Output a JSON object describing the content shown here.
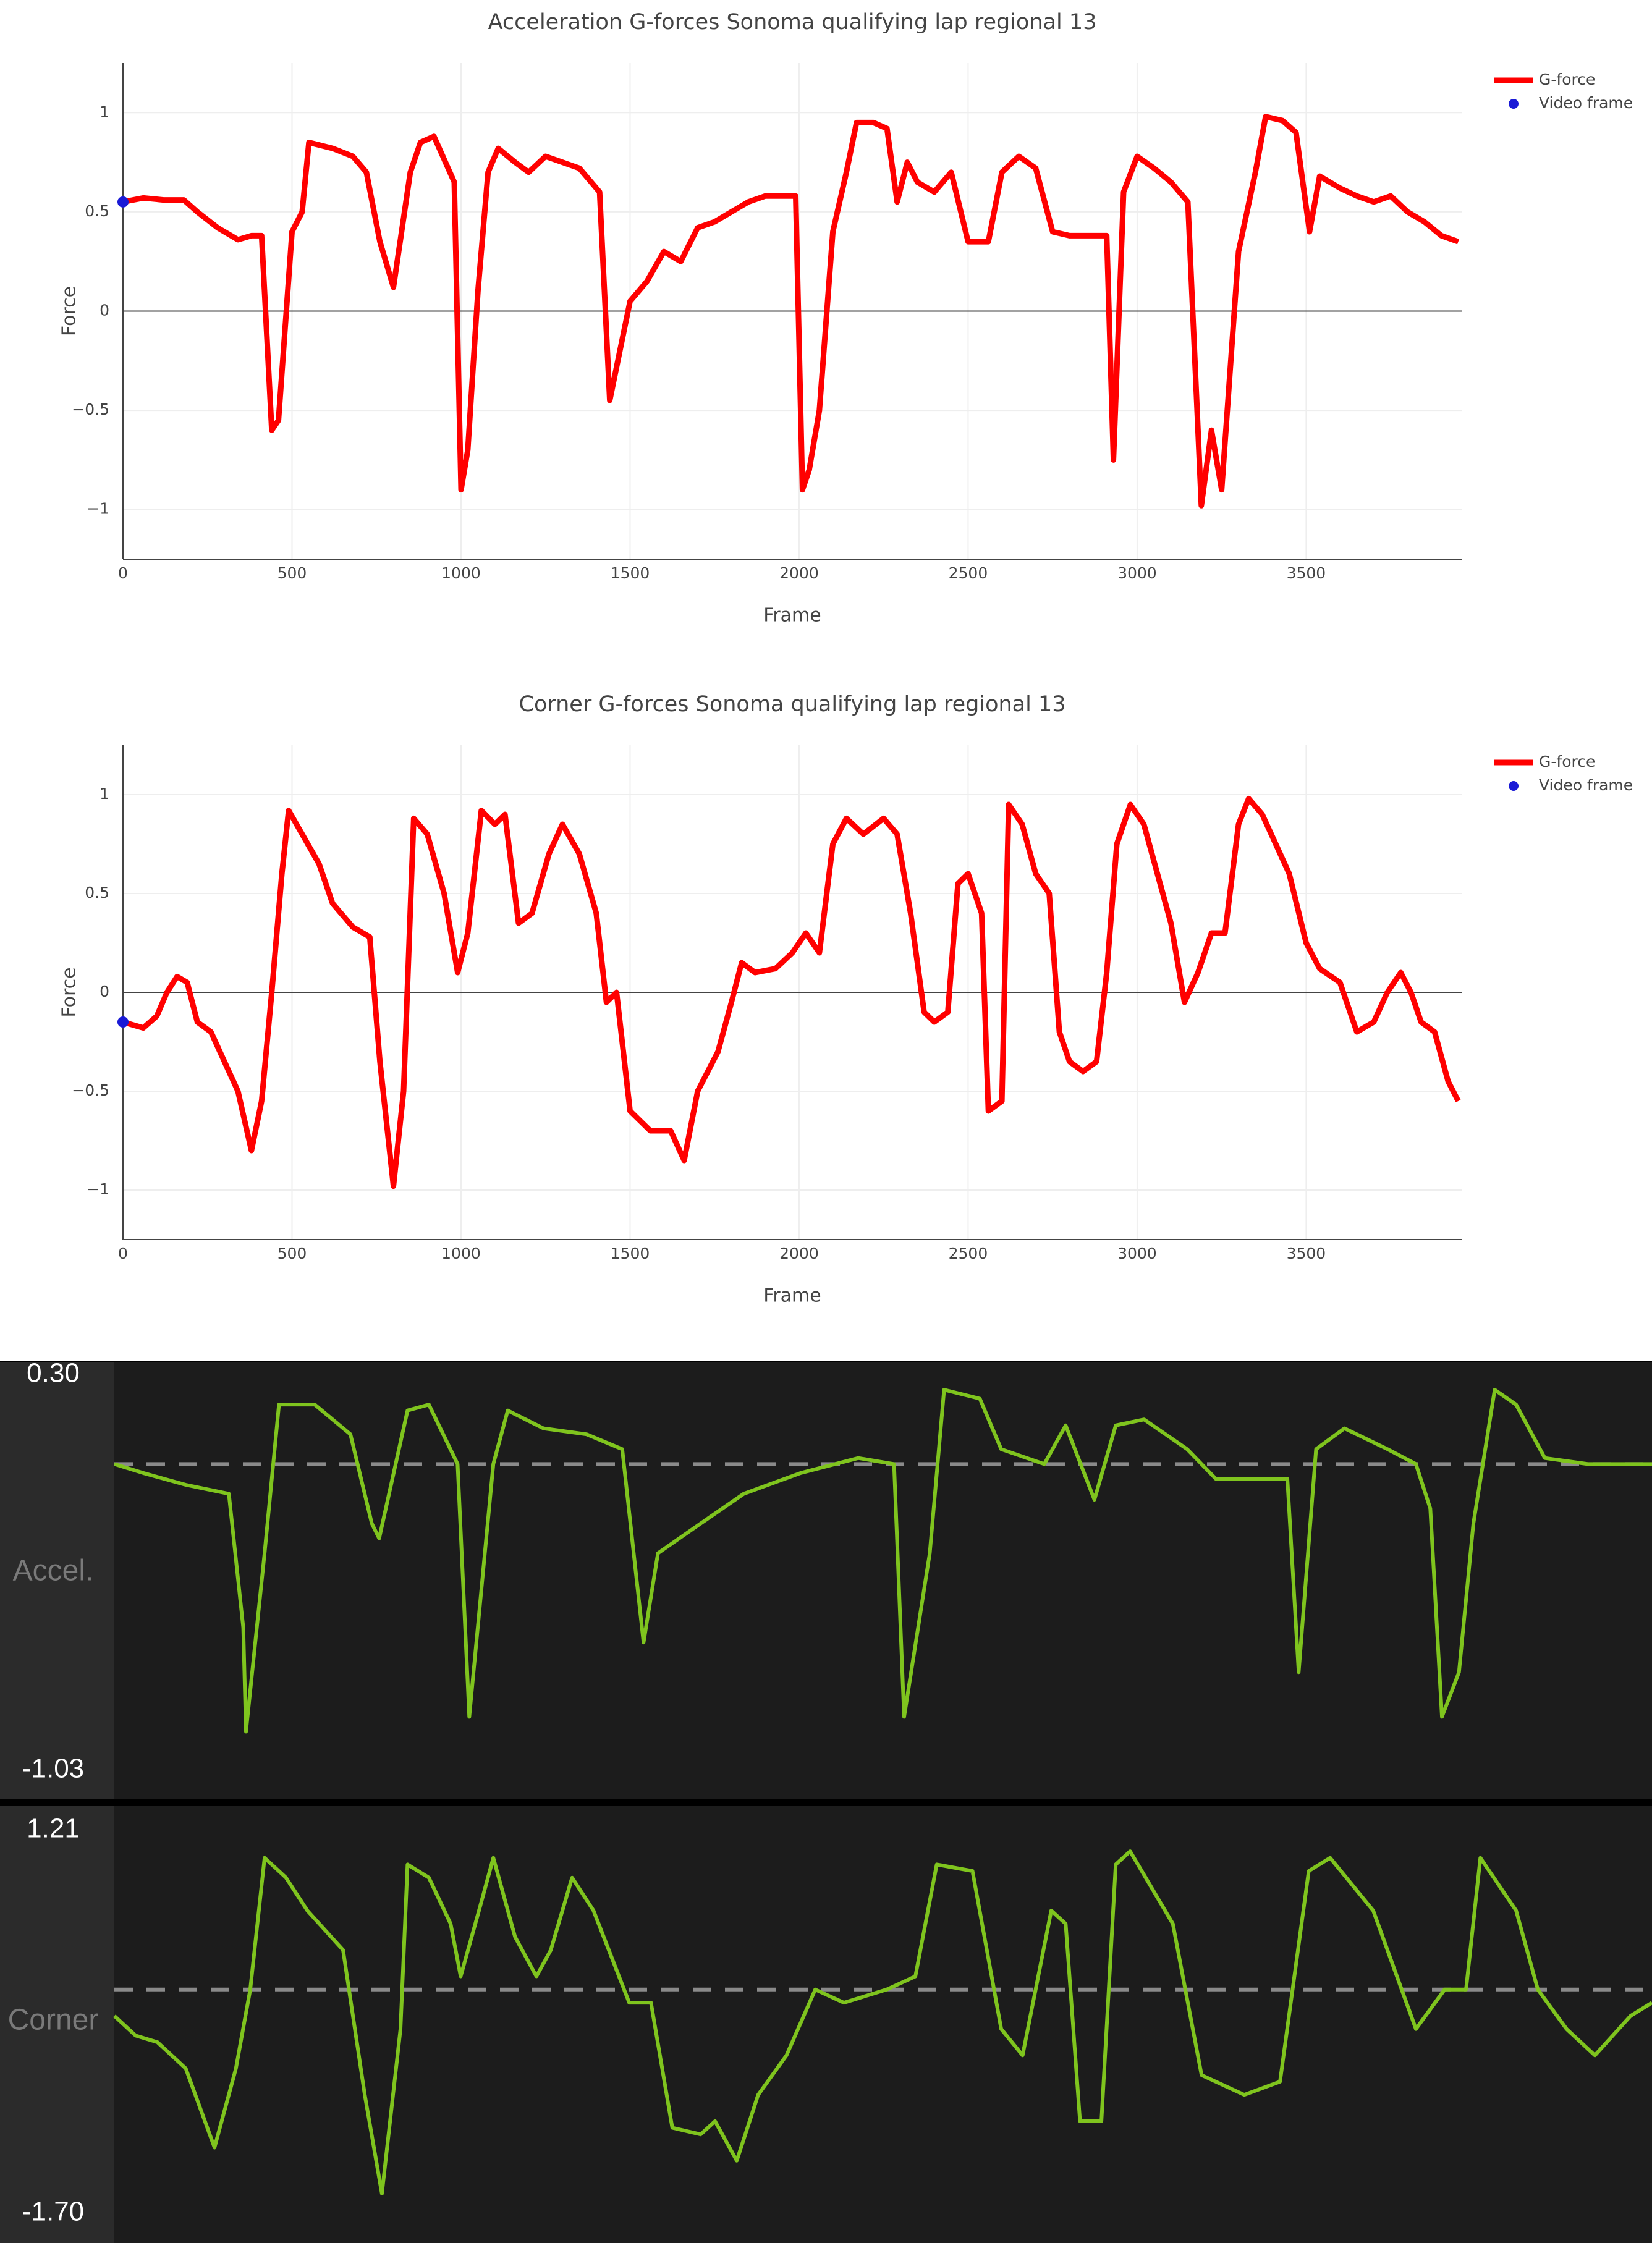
{
  "chart_data": [
    {
      "type": "line",
      "title": "Acceleration G-forces Sonoma qualifying lap regional 13",
      "xlabel": "Frame",
      "ylabel": "Force",
      "xlim": [
        0,
        3960
      ],
      "ylim": [
        -1.25,
        1.25
      ],
      "xticks": [
        0,
        500,
        1000,
        1500,
        2000,
        2500,
        3000,
        3500
      ],
      "yticks": [
        {
          "value": -1,
          "label": "−1"
        },
        {
          "value": -0.5,
          "label": "−0.5"
        },
        0,
        0.5,
        1
      ],
      "grid": true,
      "zeroline": true,
      "legend": "top-right",
      "series": [
        {
          "name": "G-force",
          "color": "#ff0000",
          "mode": "lines",
          "x": [
            0,
            60,
            120,
            180,
            220,
            280,
            340,
            380,
            410,
            440,
            460,
            500,
            530,
            550,
            620,
            680,
            720,
            760,
            800,
            850,
            880,
            920,
            980,
            1000,
            1020,
            1050,
            1080,
            1110,
            1160,
            1200,
            1250,
            1300,
            1350,
            1410,
            1440,
            1470,
            1500,
            1550,
            1600,
            1650,
            1700,
            1750,
            1800,
            1850,
            1900,
            1950,
            1990,
            2010,
            2030,
            2060,
            2100,
            2140,
            2170,
            2220,
            2260,
            2290,
            2320,
            2350,
            2400,
            2450,
            2500,
            2560,
            2600,
            2650,
            2700,
            2750,
            2800,
            2850,
            2910,
            2930,
            2960,
            3000,
            3050,
            3100,
            3150,
            3190,
            3220,
            3250,
            3300,
            3350,
            3380,
            3430,
            3470,
            3510,
            3540,
            3600,
            3650,
            3700,
            3750,
            3800,
            3850,
            3900,
            3950
          ],
          "values": [
            0.55,
            0.57,
            0.56,
            0.56,
            0.5,
            0.42,
            0.36,
            0.38,
            0.38,
            -0.6,
            -0.55,
            0.4,
            0.5,
            0.85,
            0.82,
            0.78,
            0.7,
            0.35,
            0.12,
            0.7,
            0.85,
            0.88,
            0.65,
            -0.9,
            -0.7,
            0.1,
            0.7,
            0.82,
            0.75,
            0.7,
            0.78,
            0.75,
            0.72,
            0.6,
            -0.45,
            -0.2,
            0.05,
            0.15,
            0.3,
            0.25,
            0.42,
            0.45,
            0.5,
            0.55,
            0.58,
            0.58,
            0.58,
            -0.9,
            -0.8,
            -0.5,
            0.4,
            0.7,
            0.95,
            0.95,
            0.92,
            0.55,
            0.75,
            0.65,
            0.6,
            0.7,
            0.35,
            0.35,
            0.7,
            0.78,
            0.72,
            0.4,
            0.38,
            0.38,
            0.38,
            -0.75,
            0.6,
            0.78,
            0.72,
            0.65,
            0.55,
            -0.98,
            -0.6,
            -0.9,
            0.3,
            0.7,
            0.98,
            0.96,
            0.9,
            0.4,
            0.68,
            0.62,
            0.58,
            0.55,
            0.58,
            0.5,
            0.45,
            0.38,
            0.35
          ]
        },
        {
          "name": "Video frame",
          "color": "#1a1ad6",
          "mode": "markers",
          "x": [
            0
          ],
          "values": [
            0.55
          ]
        }
      ]
    },
    {
      "type": "line",
      "title": "Corner G-forces Sonoma qualifying lap regional 13",
      "xlabel": "Frame",
      "ylabel": "Force",
      "xlim": [
        0,
        3960
      ],
      "ylim": [
        -1.25,
        1.25
      ],
      "xticks": [
        0,
        500,
        1000,
        1500,
        2000,
        2500,
        3000,
        3500
      ],
      "yticks": [
        {
          "value": -1,
          "label": "−1"
        },
        {
          "value": -0.5,
          "label": "−0.5"
        },
        0,
        0.5,
        1
      ],
      "grid": true,
      "zeroline": true,
      "legend": "top-right",
      "series": [
        {
          "name": "G-force",
          "color": "#ff0000",
          "mode": "lines",
          "x": [
            0,
            60,
            100,
            130,
            160,
            190,
            220,
            260,
            300,
            340,
            380,
            410,
            440,
            470,
            490,
            530,
            580,
            620,
            680,
            730,
            760,
            800,
            830,
            860,
            900,
            950,
            990,
            1020,
            1060,
            1100,
            1130,
            1170,
            1210,
            1260,
            1300,
            1350,
            1400,
            1430,
            1460,
            1500,
            1560,
            1620,
            1660,
            1700,
            1760,
            1800,
            1830,
            1870,
            1930,
            1980,
            2020,
            2060,
            2100,
            2140,
            2190,
            2250,
            2290,
            2330,
            2370,
            2400,
            2440,
            2470,
            2500,
            2540,
            2560,
            2600,
            2620,
            2660,
            2700,
            2740,
            2770,
            2800,
            2840,
            2880,
            2910,
            2940,
            2980,
            3020,
            3060,
            3100,
            3140,
            3180,
            3220,
            3260,
            3300,
            3330,
            3370,
            3410,
            3450,
            3500,
            3540,
            3600,
            3650,
            3700,
            3740,
            3780,
            3810,
            3840,
            3880,
            3920,
            3950
          ],
          "values": [
            -0.15,
            -0.18,
            -0.12,
            0,
            0.08,
            0.05,
            -0.15,
            -0.2,
            -0.35,
            -0.5,
            -0.8,
            -0.55,
            0,
            0.6,
            0.92,
            0.8,
            0.65,
            0.45,
            0.33,
            0.28,
            -0.35,
            -0.98,
            -0.5,
            0.88,
            0.8,
            0.5,
            0.1,
            0.3,
            0.92,
            0.85,
            0.9,
            0.35,
            0.4,
            0.7,
            0.85,
            0.7,
            0.4,
            -0.05,
            0,
            -0.6,
            -0.7,
            -0.7,
            -0.85,
            -0.5,
            -0.3,
            -0.05,
            0.15,
            0.1,
            0.12,
            0.2,
            0.3,
            0.2,
            0.75,
            0.88,
            0.8,
            0.88,
            0.8,
            0.4,
            -0.1,
            -0.15,
            -0.1,
            0.55,
            0.6,
            0.4,
            -0.6,
            -0.55,
            0.95,
            0.85,
            0.6,
            0.5,
            -0.2,
            -0.35,
            -0.4,
            -0.35,
            0.1,
            0.75,
            0.95,
            0.85,
            0.6,
            0.35,
            -0.05,
            0.1,
            0.3,
            0.3,
            0.85,
            0.98,
            0.9,
            0.75,
            0.6,
            0.25,
            0.12,
            0.05,
            -0.2,
            -0.15,
            0,
            0.1,
            0,
            -0.15,
            -0.2,
            -0.45,
            -0.55
          ]
        },
        {
          "name": "Video frame",
          "color": "#1a1ad6",
          "mode": "markers",
          "x": [
            0
          ],
          "values": [
            -0.15
          ]
        }
      ]
    },
    {
      "type": "line",
      "label": "Accel.",
      "xlim": [
        0,
        3960
      ],
      "ylim": [
        -1.03,
        0.3
      ],
      "yticks": [
        {
          "value": 0.3,
          "label": "0.30"
        },
        -1.03
      ],
      "zeroline": true,
      "series": [
        {
          "color": "#7fc41e",
          "mode": "lines",
          "x": [
            0,
            74,
            184,
            295,
            332,
            339,
            387,
            424,
            516,
            608,
            663,
            682,
            755,
            810,
            884,
            914,
            976,
            1013,
            1105,
            1216,
            1308,
            1363,
            1400,
            1510,
            1621,
            1768,
            1916,
            2008,
            2034,
            2100,
            2137,
            2229,
            2284,
            2395,
            2450,
            2524,
            2579,
            2652,
            2763,
            2837,
            3021,
            3050,
            3095,
            3168,
            3279,
            3352,
            3389,
            3419,
            3463,
            3500,
            3555,
            3610,
            3684,
            3795,
            3960
          ],
          "values": [
            0.0,
            -0.03,
            -0.07,
            -0.1,
            -0.55,
            -0.9,
            -0.3,
            0.2,
            0.2,
            0.1,
            -0.2,
            -0.25,
            0.18,
            0.2,
            0.0,
            -0.85,
            0.0,
            0.18,
            0.12,
            0.1,
            0.05,
            -0.6,
            -0.3,
            -0.2,
            -0.1,
            -0.03,
            0.02,
            0.0,
            -0.85,
            -0.3,
            0.25,
            0.22,
            0.05,
            0.0,
            0.13,
            -0.12,
            0.13,
            0.15,
            0.05,
            -0.05,
            -0.05,
            -0.7,
            0.05,
            0.12,
            0.05,
            0.0,
            -0.15,
            -0.85,
            -0.7,
            -0.2,
            0.25,
            0.2,
            0.02,
            0.0,
            0.0
          ]
        }
      ]
    },
    {
      "type": "line",
      "label": "Corner",
      "xlim": [
        0,
        3960
      ],
      "ylim": [
        -1.7,
        1.21
      ],
      "yticks": [
        1.21,
        {
          "value": -1.7,
          "label": "-1.70"
        }
      ],
      "zeroline": true,
      "series": [
        {
          "color": "#7fc41e",
          "mode": "lines",
          "x": [
            0,
            55,
            111,
            184,
            258,
            313,
            350,
            387,
            442,
            497,
            589,
            645,
            689,
            737,
            755,
            810,
            866,
            892,
            939,
            976,
            1032,
            1087,
            1124,
            1179,
            1234,
            1326,
            1382,
            1437,
            1510,
            1547,
            1603,
            1658,
            1731,
            1805,
            1879,
            1989,
            2063,
            2118,
            2210,
            2284,
            2339,
            2413,
            2450,
            2487,
            2542,
            2579,
            2616,
            2726,
            2800,
            2910,
            3002,
            3076,
            3131,
            3242,
            3352,
            3426,
            3481,
            3518,
            3610,
            3666,
            3740,
            3813,
            3905,
            3960
          ],
          "values": [
            -0.2,
            -0.35,
            -0.4,
            -0.6,
            -1.2,
            -0.6,
            0,
            1.0,
            0.85,
            0.6,
            0.3,
            -0.8,
            -1.55,
            -0.3,
            0.95,
            0.85,
            0.5,
            0.1,
            0.6,
            1.0,
            0.4,
            0.1,
            0.3,
            0.85,
            0.6,
            -0.1,
            -0.1,
            -1.05,
            -1.1,
            -1.0,
            -1.3,
            -0.8,
            -0.5,
            0,
            -0.1,
            0,
            0.1,
            0.95,
            0.9,
            -0.3,
            -0.5,
            0.6,
            0.5,
            -1.0,
            -1.0,
            0.95,
            1.05,
            0.5,
            -0.65,
            -0.8,
            -0.7,
            0.9,
            1.0,
            0.6,
            -0.3,
            0,
            0,
            1.0,
            0.6,
            0,
            -0.3,
            -0.5,
            -0.2,
            -0.1
          ]
        }
      ]
    }
  ]
}
